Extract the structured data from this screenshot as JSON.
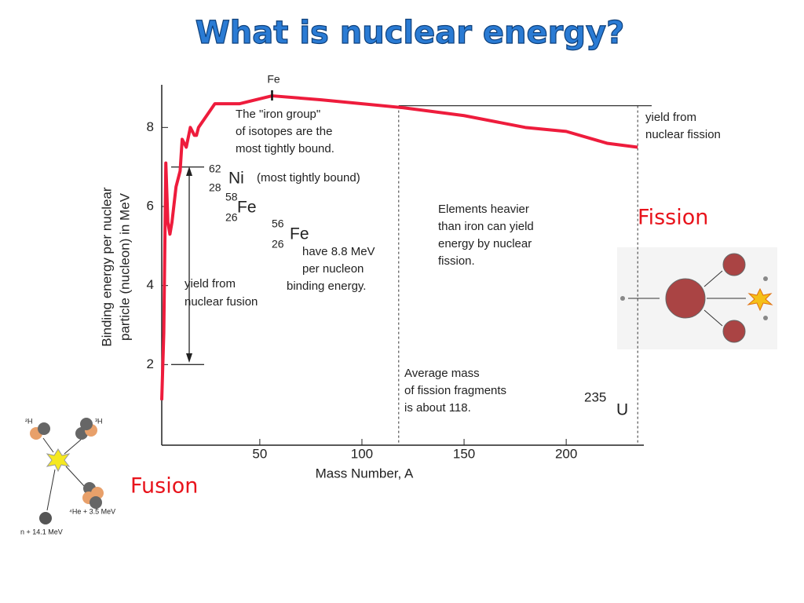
{
  "chart_data": {
    "type": "line",
    "title": "What is nuclear energy?",
    "x_label": "Mass Number, A",
    "y_label": [
      "Binding energy per nuclear",
      "particle (nucleon) in MeV"
    ],
    "xlim": [
      2,
      238
    ],
    "xticks": [
      50,
      100,
      150,
      200
    ],
    "ylim": [
      0,
      9
    ],
    "yticks": [
      2,
      4,
      6,
      8
    ],
    "x": [
      2,
      3,
      4,
      5,
      6,
      7,
      9,
      11,
      12,
      14,
      16,
      18,
      19,
      20,
      24,
      28,
      40,
      56,
      80,
      100,
      120,
      150,
      180,
      200,
      220,
      235
    ],
    "series": [
      {
        "color": "#ee1c3c",
        "values": [
          1.1,
          2.8,
          7.1,
          5.6,
          5.3,
          5.6,
          6.5,
          6.9,
          7.7,
          7.5,
          8.0,
          7.8,
          7.8,
          8.0,
          8.3,
          8.6,
          8.6,
          8.8,
          8.7,
          8.6,
          8.5,
          8.3,
          8.0,
          7.9,
          7.6,
          7.5
        ]
      }
    ],
    "fusion_yield_levels": [
      7,
      2
    ],
    "fission_yield_level": 8.55,
    "dashed_lines_x": [
      118,
      235
    ],
    "peak_marker": {
      "x": 56,
      "label": "Fe"
    },
    "annotations": [
      "The \"iron group\"",
      "of isotopes are the",
      "most tightly bound.",
      "62",
      "Ni",
      "28",
      "(most tightly bound)",
      "58",
      "Fe",
      "26",
      "56",
      "Fe",
      "26",
      "have 8.8 MeV",
      "per nucleon",
      "binding energy.",
      "yield from",
      "nuclear fusion",
      "Elements heavier",
      "than iron can yield",
      "energy by nuclear",
      "fission.",
      "yield from",
      "nuclear fission",
      "Average mass",
      "of fission fragments",
      "is about 118.",
      "235",
      "U"
    ]
  },
  "fission_label": "Fission",
  "fusion_label": "Fusion",
  "fusion_diagram_labels": [
    "²H",
    "³H",
    "⁴He + 3.5 MeV",
    "n + 14.1 MeV"
  ]
}
